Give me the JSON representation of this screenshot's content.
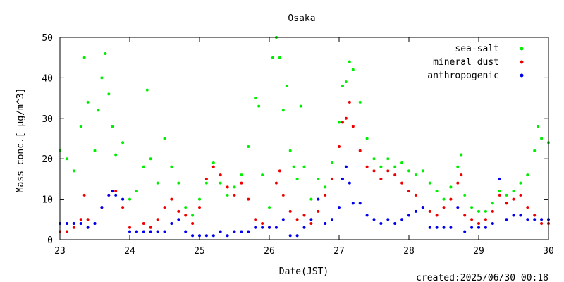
{
  "chart_data": {
    "type": "scatter",
    "title": "Osaka",
    "xlabel": "Date(JST)",
    "ylabel": "Mass conc.[ μg/m^3]",
    "xlim": [
      23,
      30
    ],
    "ylim": [
      0,
      50
    ],
    "x_ticks": [
      "23",
      "24",
      "25",
      "26",
      "27",
      "28",
      "29",
      "30"
    ],
    "y_ticks": [
      "0",
      "10",
      "20",
      "30",
      "40",
      "50"
    ],
    "legend_position": "top-right",
    "footer": "created:2025/06/30 00:18",
    "series": [
      {
        "name": "sea-salt",
        "color": "#00ee00",
        "points": [
          [
            23.0,
            22
          ],
          [
            23.1,
            20
          ],
          [
            23.2,
            17
          ],
          [
            23.3,
            28
          ],
          [
            23.35,
            45
          ],
          [
            23.4,
            34
          ],
          [
            23.5,
            22
          ],
          [
            23.55,
            32
          ],
          [
            23.6,
            40
          ],
          [
            23.65,
            46
          ],
          [
            23.7,
            36
          ],
          [
            23.75,
            28
          ],
          [
            23.8,
            21
          ],
          [
            23.9,
            24
          ],
          [
            24.0,
            10
          ],
          [
            24.1,
            12
          ],
          [
            24.2,
            18
          ],
          [
            24.25,
            37
          ],
          [
            24.3,
            20
          ],
          [
            24.4,
            14
          ],
          [
            24.5,
            25
          ],
          [
            24.6,
            18
          ],
          [
            24.7,
            14
          ],
          [
            24.8,
            8
          ],
          [
            24.9,
            6
          ],
          [
            25.0,
            10
          ],
          [
            25.1,
            14
          ],
          [
            25.2,
            19
          ],
          [
            25.3,
            14
          ],
          [
            25.4,
            11
          ],
          [
            25.5,
            13
          ],
          [
            25.6,
            16
          ],
          [
            25.7,
            23
          ],
          [
            25.8,
            35
          ],
          [
            25.85,
            33
          ],
          [
            25.9,
            16
          ],
          [
            26.0,
            8
          ],
          [
            26.05,
            45
          ],
          [
            26.1,
            50
          ],
          [
            26.15,
            45
          ],
          [
            26.2,
            32
          ],
          [
            26.25,
            38
          ],
          [
            26.3,
            22
          ],
          [
            26.35,
            18
          ],
          [
            26.4,
            15
          ],
          [
            26.45,
            33
          ],
          [
            26.5,
            18
          ],
          [
            26.6,
            10
          ],
          [
            26.7,
            15
          ],
          [
            26.8,
            13
          ],
          [
            26.9,
            19
          ],
          [
            27.0,
            29
          ],
          [
            27.05,
            38
          ],
          [
            27.1,
            39
          ],
          [
            27.15,
            44
          ],
          [
            27.2,
            42
          ],
          [
            27.3,
            34
          ],
          [
            27.4,
            25
          ],
          [
            27.5,
            20
          ],
          [
            27.6,
            18
          ],
          [
            27.7,
            20
          ],
          [
            27.8,
            18
          ],
          [
            27.9,
            19
          ],
          [
            28.0,
            17
          ],
          [
            28.1,
            16
          ],
          [
            28.2,
            17
          ],
          [
            28.3,
            14
          ],
          [
            28.4,
            12
          ],
          [
            28.5,
            10
          ],
          [
            28.6,
            13
          ],
          [
            28.7,
            18
          ],
          [
            28.75,
            21
          ],
          [
            28.8,
            11
          ],
          [
            28.9,
            8
          ],
          [
            29.0,
            7
          ],
          [
            29.1,
            7
          ],
          [
            29.2,
            9
          ],
          [
            29.3,
            12
          ],
          [
            29.4,
            11
          ],
          [
            29.5,
            12
          ],
          [
            29.6,
            14
          ],
          [
            29.7,
            16
          ],
          [
            29.8,
            22
          ],
          [
            29.85,
            28
          ],
          [
            29.9,
            25
          ],
          [
            30.0,
            24
          ]
        ]
      },
      {
        "name": "mineral dust",
        "color": "#ee0000",
        "points": [
          [
            23.0,
            2
          ],
          [
            23.1,
            2
          ],
          [
            23.2,
            3
          ],
          [
            23.3,
            5
          ],
          [
            23.35,
            11
          ],
          [
            23.4,
            5
          ],
          [
            23.5,
            4
          ],
          [
            23.6,
            8
          ],
          [
            23.7,
            11
          ],
          [
            23.8,
            12
          ],
          [
            23.9,
            8
          ],
          [
            24.0,
            3
          ],
          [
            24.1,
            2
          ],
          [
            24.2,
            4
          ],
          [
            24.3,
            3
          ],
          [
            24.4,
            5
          ],
          [
            24.5,
            8
          ],
          [
            24.6,
            10
          ],
          [
            24.7,
            7
          ],
          [
            24.8,
            6
          ],
          [
            24.9,
            4
          ],
          [
            25.0,
            8
          ],
          [
            25.1,
            15
          ],
          [
            25.2,
            18
          ],
          [
            25.3,
            16
          ],
          [
            25.4,
            13
          ],
          [
            25.5,
            11
          ],
          [
            25.6,
            14
          ],
          [
            25.7,
            10
          ],
          [
            25.8,
            5
          ],
          [
            25.9,
            4
          ],
          [
            26.0,
            3
          ],
          [
            26.1,
            14
          ],
          [
            26.15,
            17
          ],
          [
            26.2,
            11
          ],
          [
            26.3,
            7
          ],
          [
            26.4,
            5
          ],
          [
            26.5,
            6
          ],
          [
            26.6,
            4
          ],
          [
            26.7,
            7
          ],
          [
            26.8,
            11
          ],
          [
            26.9,
            15
          ],
          [
            27.0,
            23
          ],
          [
            27.05,
            29
          ],
          [
            27.1,
            30
          ],
          [
            27.15,
            34
          ],
          [
            27.2,
            28
          ],
          [
            27.3,
            22
          ],
          [
            27.4,
            18
          ],
          [
            27.5,
            17
          ],
          [
            27.6,
            15
          ],
          [
            27.7,
            17
          ],
          [
            27.8,
            16
          ],
          [
            27.9,
            14
          ],
          [
            28.0,
            12
          ],
          [
            28.1,
            11
          ],
          [
            28.2,
            8
          ],
          [
            28.3,
            7
          ],
          [
            28.4,
            6
          ],
          [
            28.5,
            8
          ],
          [
            28.6,
            10
          ],
          [
            28.7,
            14
          ],
          [
            28.75,
            16
          ],
          [
            28.8,
            6
          ],
          [
            28.9,
            5
          ],
          [
            29.0,
            4
          ],
          [
            29.1,
            5
          ],
          [
            29.2,
            7
          ],
          [
            29.3,
            11
          ],
          [
            29.4,
            9
          ],
          [
            29.5,
            10
          ],
          [
            29.6,
            11
          ],
          [
            29.7,
            8
          ],
          [
            29.8,
            6
          ],
          [
            29.9,
            4
          ],
          [
            30.0,
            4
          ]
        ]
      },
      {
        "name": "anthropogenic",
        "color": "#0000ee",
        "points": [
          [
            23.0,
            4
          ],
          [
            23.1,
            4
          ],
          [
            23.2,
            4
          ],
          [
            23.3,
            4
          ],
          [
            23.4,
            3
          ],
          [
            23.5,
            4
          ],
          [
            23.6,
            8
          ],
          [
            23.7,
            11
          ],
          [
            23.75,
            12
          ],
          [
            23.8,
            11
          ],
          [
            23.9,
            10
          ],
          [
            24.0,
            2
          ],
          [
            24.1,
            2
          ],
          [
            24.2,
            2
          ],
          [
            24.3,
            2
          ],
          [
            24.4,
            2
          ],
          [
            24.5,
            2
          ],
          [
            24.6,
            4
          ],
          [
            24.7,
            5
          ],
          [
            24.8,
            2
          ],
          [
            24.9,
            1
          ],
          [
            25.0,
            1
          ],
          [
            25.1,
            1
          ],
          [
            25.2,
            1
          ],
          [
            25.3,
            2
          ],
          [
            25.4,
            1
          ],
          [
            25.5,
            2
          ],
          [
            25.6,
            2
          ],
          [
            25.7,
            2
          ],
          [
            25.8,
            3
          ],
          [
            25.9,
            3
          ],
          [
            26.0,
            3
          ],
          [
            26.1,
            3
          ],
          [
            26.2,
            5
          ],
          [
            26.3,
            1
          ],
          [
            26.4,
            1
          ],
          [
            26.5,
            3
          ],
          [
            26.6,
            5
          ],
          [
            26.7,
            10
          ],
          [
            26.8,
            4
          ],
          [
            26.9,
            5
          ],
          [
            27.0,
            8
          ],
          [
            27.05,
            15
          ],
          [
            27.1,
            18
          ],
          [
            27.15,
            14
          ],
          [
            27.2,
            9
          ],
          [
            27.3,
            9
          ],
          [
            27.4,
            6
          ],
          [
            27.5,
            5
          ],
          [
            27.6,
            4
          ],
          [
            27.7,
            5
          ],
          [
            27.8,
            4
          ],
          [
            27.9,
            5
          ],
          [
            28.0,
            6
          ],
          [
            28.1,
            7
          ],
          [
            28.2,
            8
          ],
          [
            28.3,
            3
          ],
          [
            28.4,
            3
          ],
          [
            28.5,
            3
          ],
          [
            28.6,
            3
          ],
          [
            28.7,
            8
          ],
          [
            28.8,
            2
          ],
          [
            28.9,
            3
          ],
          [
            29.0,
            3
          ],
          [
            29.1,
            3
          ],
          [
            29.2,
            4
          ],
          [
            29.3,
            15
          ],
          [
            29.4,
            5
          ],
          [
            29.5,
            6
          ],
          [
            29.6,
            6
          ],
          [
            29.7,
            5
          ],
          [
            29.8,
            5
          ],
          [
            29.9,
            5
          ],
          [
            30.0,
            5
          ]
        ]
      }
    ]
  }
}
